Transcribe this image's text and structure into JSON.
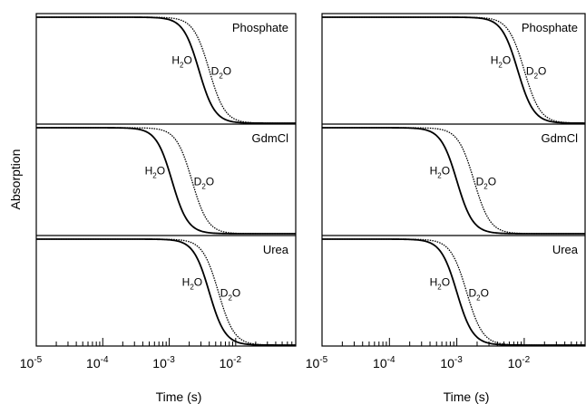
{
  "figure": {
    "ylabel": "Absorption",
    "xlabel": "Time (s)"
  },
  "chart_data": {
    "type": "line",
    "x_scale": "log",
    "xlim_seconds": [
      1e-05,
      0.08
    ],
    "x_tick_labels": [
      {
        "value": 1e-05,
        "base": "10",
        "exp": "-5"
      },
      {
        "value": 0.0001,
        "base": "10",
        "exp": "-4"
      },
      {
        "value": 0.001,
        "base": "10",
        "exp": "-3"
      },
      {
        "value": 0.01,
        "base": "10",
        "exp": "-2"
      }
    ],
    "xlabel": "Time (s)",
    "ylabel": "Absorption",
    "y_ticks_labeled": false,
    "panels": [
      {
        "column": "left",
        "row": 0,
        "label": "Phosphate",
        "series": [
          {
            "name": "H2O",
            "midpoint_s": 0.0028,
            "width_decades": 0.5,
            "style": "solid"
          },
          {
            "name": "D2O",
            "midpoint_s": 0.004,
            "width_decades": 0.5,
            "style": "dotted"
          }
        ]
      },
      {
        "column": "left",
        "row": 1,
        "label": "GdmCl",
        "series": [
          {
            "name": "H2O",
            "midpoint_s": 0.0011,
            "width_decades": 0.5,
            "style": "solid"
          },
          {
            "name": "D2O",
            "midpoint_s": 0.0022,
            "width_decades": 0.5,
            "style": "dotted"
          }
        ]
      },
      {
        "column": "left",
        "row": 2,
        "label": "Urea",
        "series": [
          {
            "name": "H2O",
            "midpoint_s": 0.004,
            "width_decades": 0.5,
            "style": "solid"
          },
          {
            "name": "D2O",
            "midpoint_s": 0.0055,
            "width_decades": 0.5,
            "style": "dotted"
          }
        ]
      },
      {
        "column": "right",
        "row": 0,
        "label": "Phosphate",
        "series": [
          {
            "name": "H2O",
            "midpoint_s": 0.008,
            "width_decades": 0.5,
            "style": "solid"
          },
          {
            "name": "D2O",
            "midpoint_s": 0.01,
            "width_decades": 0.5,
            "style": "dotted"
          }
        ]
      },
      {
        "column": "right",
        "row": 1,
        "label": "GdmCl",
        "series": [
          {
            "name": "H2O",
            "midpoint_s": 0.001,
            "width_decades": 0.5,
            "style": "solid"
          },
          {
            "name": "D2O",
            "midpoint_s": 0.0018,
            "width_decades": 0.5,
            "style": "dotted"
          }
        ]
      },
      {
        "column": "right",
        "row": 2,
        "label": "Urea",
        "series": [
          {
            "name": "H2O",
            "midpoint_s": 0.001,
            "width_decades": 0.5,
            "style": "solid"
          },
          {
            "name": "D2O",
            "midpoint_s": 0.0014,
            "width_decades": 0.5,
            "style": "dotted"
          }
        ]
      }
    ],
    "curve_labels": {
      "h2o": {
        "base": "H",
        "sub": "2",
        "tail": "O"
      },
      "d2o": {
        "base": "D",
        "sub": "2",
        "tail": "O"
      }
    }
  }
}
